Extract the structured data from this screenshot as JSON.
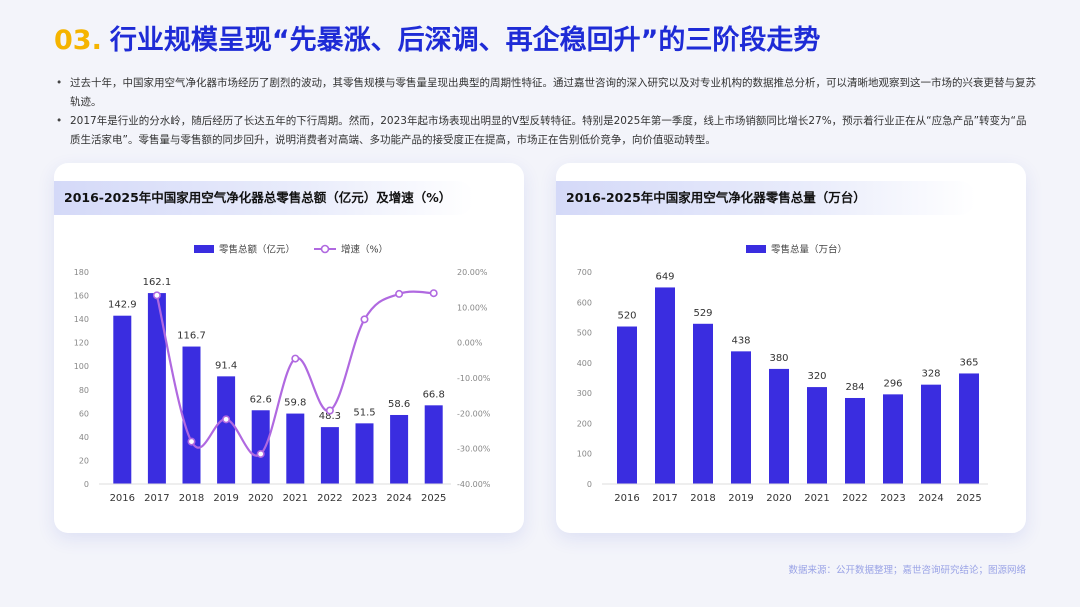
{
  "header": {
    "number": "03.",
    "title": "行业规模呈现“先暴涨、后深调、再企稳回升”的三阶段走势"
  },
  "bullets": [
    "过去十年，中国家用空气净化器市场经历了剧烈的波动，其零售规模与零售量呈现出典型的周期性特征。通过嘉世咨询的深入研究以及对专业机构的数据推总分析，可以清晰地观察到这一市场的兴衰更替与复苏轨迹。",
    "2017年是行业的分水岭，随后经历了长达五年的下行周期。然而，2023年起市场表现出明显的V型反转特征。特别是2025年第一季度，线上市场销额同比增长27%，预示着行业正在从“应急产品”转变为“品质生活家电”。零售量与零售额的同步回升，说明消费者对高端、多功能产品的接受度正在提高，市场正在告别低价竞争，向价值驱动转型。"
  ],
  "source": "数据来源：公开数据整理；嘉世咨询研究结论；图源网络",
  "colors": {
    "bar": "#3a2de0",
    "line": "#b069e0",
    "title_blue": "#1e2bd6",
    "title_yellow": "#f5b400"
  },
  "chart_data": [
    {
      "type": "bar",
      "title": "2016-2025年中国家用空气净化器总零售总额（亿元）及增速（%）",
      "categories": [
        "2016",
        "2017",
        "2018",
        "2019",
        "2020",
        "2021",
        "2022",
        "2023",
        "2024",
        "2025"
      ],
      "series": [
        {
          "name": "零售总额（亿元）",
          "type": "bar",
          "axis": "left",
          "values": [
            142.9,
            162.1,
            116.7,
            91.4,
            62.6,
            59.8,
            48.3,
            51.5,
            58.6,
            66.8
          ]
        },
        {
          "name": "增速（%）",
          "type": "line",
          "axis": "right",
          "values": [
            null,
            13.4,
            -28.0,
            -21.7,
            -31.5,
            -4.5,
            -19.2,
            6.6,
            13.8,
            14.0
          ]
        }
      ],
      "y_left": {
        "range": [
          0,
          180
        ],
        "ticks": [
          "0",
          "20",
          "40",
          "60",
          "80",
          "100",
          "120",
          "140",
          "160",
          "180"
        ]
      },
      "y_right": {
        "range": [
          -40,
          20
        ],
        "ticks": [
          "-40.00%",
          "-30.00%",
          "-20.00%",
          "-10.00%",
          "0.00%",
          "10.00%",
          "20.00%"
        ]
      },
      "legend": "top",
      "grid": false
    },
    {
      "type": "bar",
      "title": "2016-2025年中国家用空气净化器零售总量（万台）",
      "categories": [
        "2016",
        "2017",
        "2018",
        "2019",
        "2020",
        "2021",
        "2022",
        "2023",
        "2024",
        "2025"
      ],
      "series": [
        {
          "name": "零售总量（万台）",
          "type": "bar",
          "axis": "left",
          "values": [
            520,
            649,
            529,
            438,
            380,
            320,
            284,
            296,
            328,
            365
          ]
        }
      ],
      "y_left": {
        "range": [
          0,
          700
        ],
        "ticks": [
          "0",
          "100",
          "200",
          "300",
          "400",
          "500",
          "600",
          "700"
        ]
      },
      "legend": "top",
      "grid": false
    }
  ]
}
